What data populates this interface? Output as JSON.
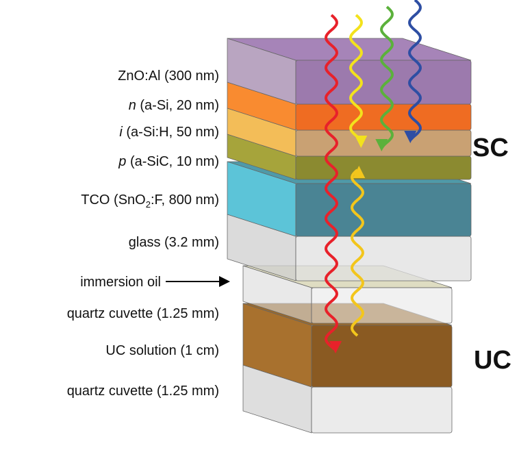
{
  "layers": [
    {
      "parts": [
        "ZnO:Al (300 nm)"
      ]
    },
    {
      "parts": [
        "n",
        " (a-Si, 20 nm)"
      ]
    },
    {
      "parts": [
        "i",
        " (a-Si:H, 50 nm)"
      ]
    },
    {
      "parts": [
        "p",
        " (a-SiC, 10 nm)"
      ]
    },
    {
      "parts": [
        "TCO (SnO",
        "2",
        ":F, 800 nm)"
      ]
    },
    {
      "parts": [
        "glass (3.2 mm)"
      ]
    },
    {
      "parts": [
        "immersion oil"
      ]
    },
    {
      "parts": [
        "quartz cuvette (1.25 mm)"
      ]
    },
    {
      "parts": [
        "UC solution (1 cm)"
      ]
    },
    {
      "parts": [
        "quartz cuvette (1.25 mm)"
      ]
    }
  ],
  "groups": {
    "sc": "SC",
    "uc": "UC"
  }
}
